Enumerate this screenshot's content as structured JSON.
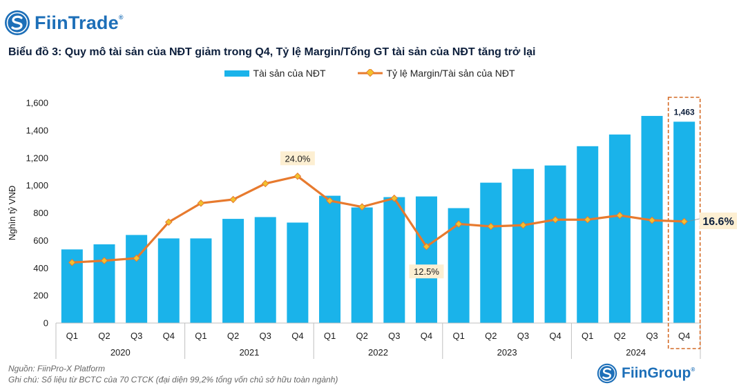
{
  "header": {
    "brand": "FiinTrade",
    "registered": "®",
    "title": "Biểu đồ 3: Quy mô tài sản của NĐT giảm trong Q4, Tỷ lệ Margin/Tổng GT tài sản của NĐT tăng trở lại"
  },
  "footer": {
    "source": "Nguồn: FiinPro-X Platform",
    "note": "Ghi chú: Số liệu từ BCTC của 70 CTCK (đại diện 99,2% tổng vốn chủ sở hữu toàn ngành)",
    "brand": "FiinGroup",
    "registered": "®"
  },
  "colors": {
    "bar": "#1ab3ea",
    "line": "#e77a2e",
    "marker": "#f2c12e",
    "callout_bg": "#fdefd2",
    "highlight_border": "#d46a25",
    "brand": "#1d6fb8"
  },
  "chart_data": {
    "type": "bar+line",
    "ylabel": "Nghìn tỷ VNĐ",
    "ylim": [
      0,
      1600
    ],
    "yticks": [
      0,
      200,
      400,
      600,
      800,
      1000,
      1200,
      1400,
      1600
    ],
    "ytick_labels": [
      "0",
      "200",
      "400",
      "600",
      "800",
      "1,000",
      "1,200",
      "1,400",
      "1,600"
    ],
    "quarters": [
      "Q1",
      "Q2",
      "Q3",
      "Q4",
      "Q1",
      "Q2",
      "Q3",
      "Q4",
      "Q1",
      "Q2",
      "Q3",
      "Q4",
      "Q1",
      "Q2",
      "Q3",
      "Q4",
      "Q1",
      "Q2",
      "Q3",
      "Q4"
    ],
    "years": [
      "2020",
      "2021",
      "2022",
      "2023",
      "2024"
    ],
    "legend_position": "top-center",
    "series": [
      {
        "name": "Tài sản của NĐT",
        "type": "bar",
        "axis": "left",
        "values": [
          535,
          572,
          640,
          615,
          615,
          757,
          770,
          730,
          925,
          840,
          915,
          920,
          835,
          1020,
          1120,
          1145,
          1285,
          1370,
          1505,
          1463
        ]
      },
      {
        "name": "Tỷ lệ Margin/Tài sản của NĐT",
        "type": "line",
        "axis": "right",
        "unit": "%",
        "ylim": [
          0,
          36
        ],
        "values": [
          9.9,
          10.2,
          10.6,
          16.5,
          19.6,
          20.2,
          22.8,
          24.0,
          20.0,
          19.0,
          20.4,
          12.5,
          16.2,
          15.8,
          16.0,
          16.9,
          16.9,
          17.6,
          16.8,
          16.6
        ]
      }
    ],
    "annotations": [
      {
        "series": 1,
        "index": 7,
        "label": "24.0%"
      },
      {
        "series": 1,
        "index": 11,
        "label": "12.5%"
      },
      {
        "series": 1,
        "index": 19,
        "label": "16.6%"
      },
      {
        "series": 0,
        "index": 19,
        "label": "1,463"
      }
    ],
    "highlight_index": 19
  }
}
